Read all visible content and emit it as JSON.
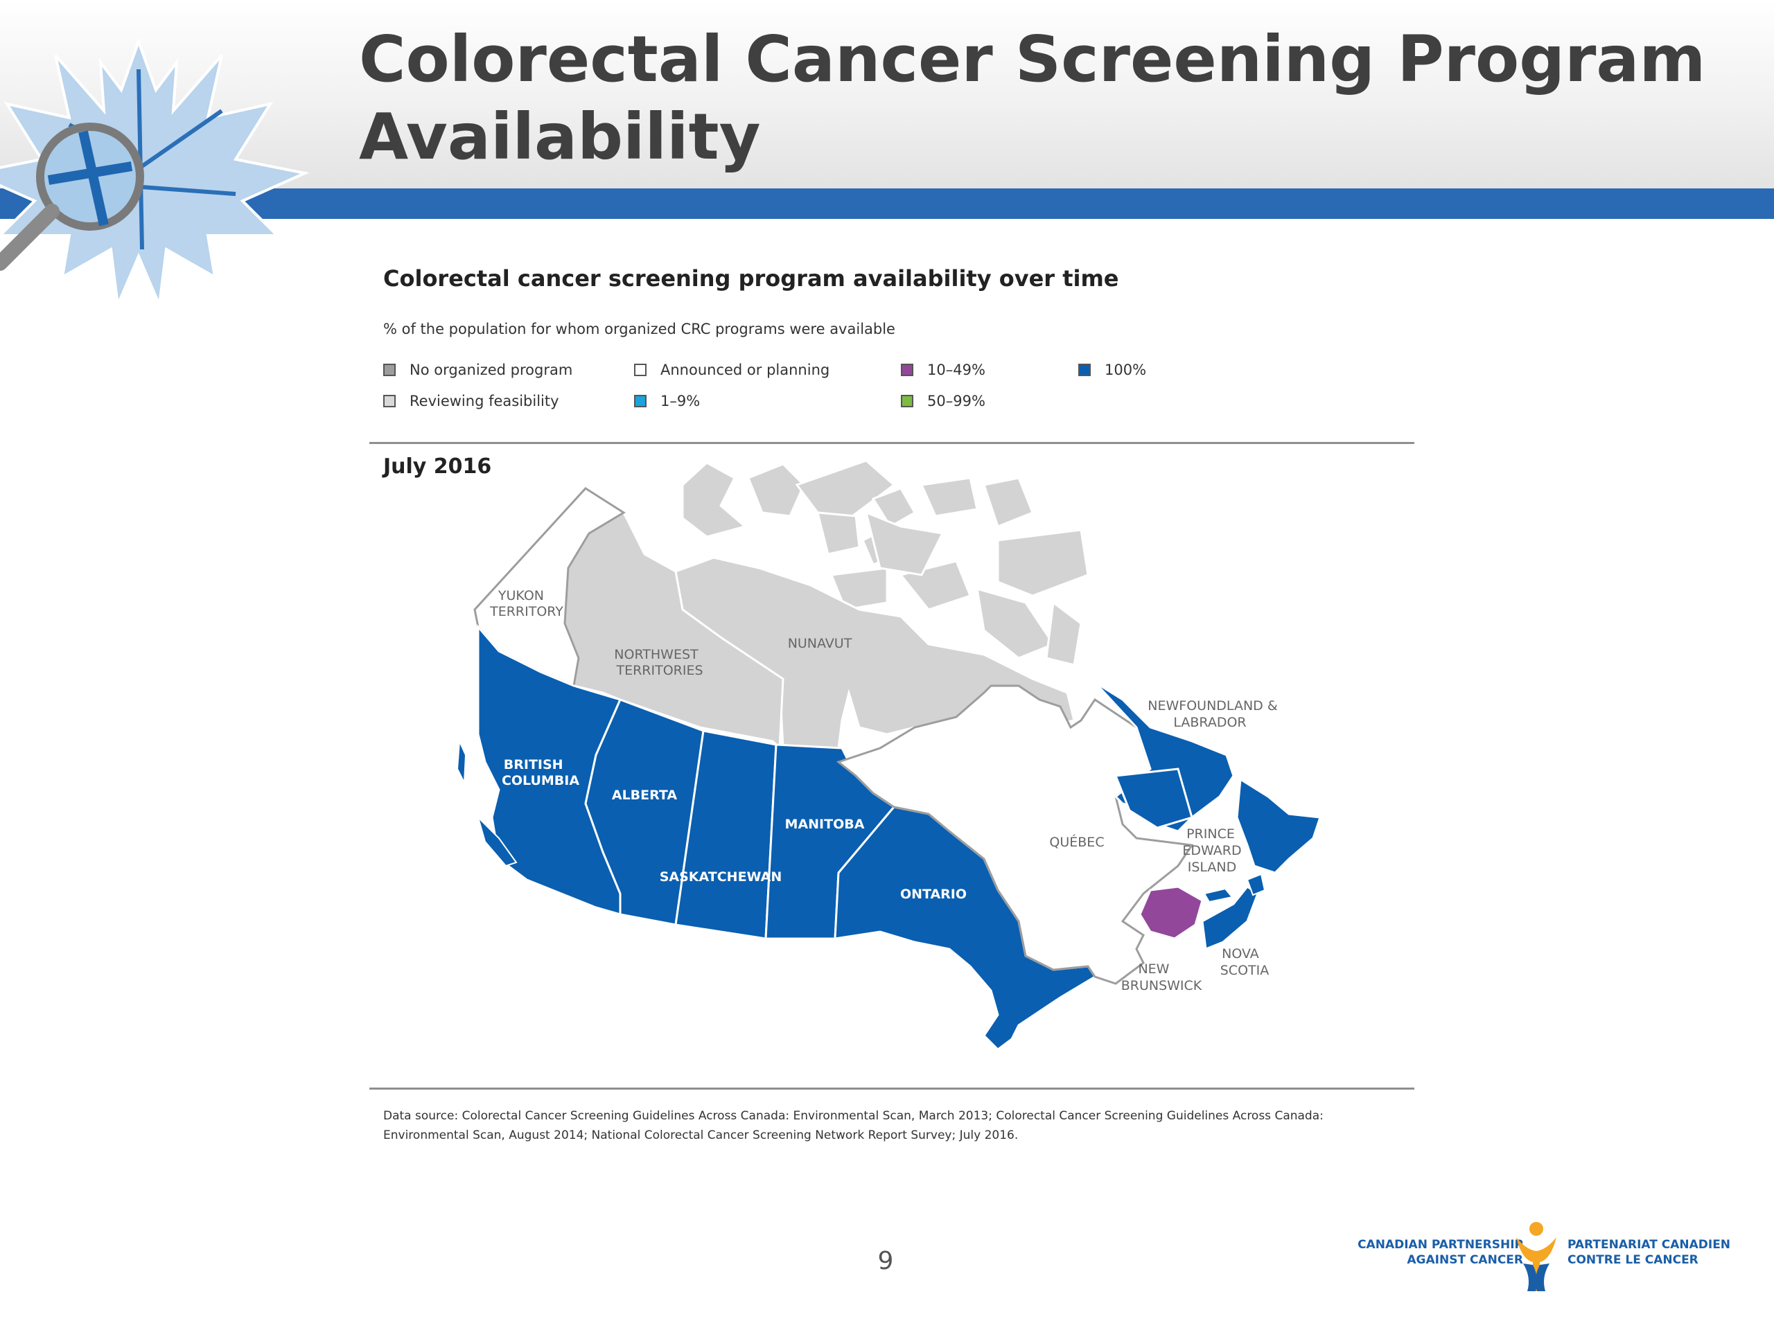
{
  "slide": {
    "title": "Colorectal Cancer Screening Program Availability",
    "page_number": "9"
  },
  "chart": {
    "subtitle": "Colorectal cancer screening program availability over time",
    "description": "% of the population for whom organized CRC programs were available",
    "map_date": "July 2016",
    "legend": [
      {
        "label": "No organized program",
        "color": "#9d9d9d"
      },
      {
        "label": "Reviewing feasibility",
        "color": "#d9d9d9"
      },
      {
        "label": "Announced or planning",
        "color": "#ffffff"
      },
      {
        "label": "1–9%",
        "color": "#1ba3dc"
      },
      {
        "label": "10–49%",
        "color": "#93479a"
      },
      {
        "label": "50–99%",
        "color": "#7dbb42"
      },
      {
        "label": "100%",
        "color": "#0a5fb0"
      }
    ],
    "source": "Data source: Colorectal Cancer Screening Guidelines Across Canada: Environmental Scan, March 2013; Colorectal Cancer Screening Guidelines Across Canada: Environmental Scan, August 2014; National Colorectal Cancer Screening Network Report Survey; July 2016."
  },
  "regions": {
    "yukon": {
      "label": "YUKON TERRITORY",
      "status": "Announced or planning"
    },
    "nwt": {
      "label": "NORTHWEST TERRITORIES",
      "status": "Reviewing feasibility"
    },
    "nunavut": {
      "label": "NUNAVUT",
      "status": "Reviewing feasibility"
    },
    "bc": {
      "label": "BRITISH COLUMBIA",
      "status": "100%"
    },
    "alberta": {
      "label": "ALBERTA",
      "status": "100%"
    },
    "saskatchewan": {
      "label": "SASKATCHEWAN",
      "status": "100%"
    },
    "manitoba": {
      "label": "MANITOBA",
      "status": "100%"
    },
    "ontario": {
      "label": "ONTARIO",
      "status": "100%"
    },
    "quebec": {
      "label": "QUÉBEC",
      "status": "Announced or planning"
    },
    "newfoundland": {
      "label": "NEWFOUNDLAND & LABRADOR",
      "status": "100%"
    },
    "pei": {
      "label": "PRINCE EDWARD ISLAND",
      "status": "100%"
    },
    "new_brunswick": {
      "label": "NEW BRUNSWICK",
      "status": "10–49%"
    },
    "nova_scotia": {
      "label": "NOVA SCOTIA",
      "status": "100%"
    }
  },
  "footer_logo": {
    "en_line1": "CANADIAN PARTNERSHIP",
    "en_line2": "AGAINST CANCER",
    "fr_line1": "PARTENARIAT CANADIEN",
    "fr_line2": "CONTRE LE CANCER"
  }
}
